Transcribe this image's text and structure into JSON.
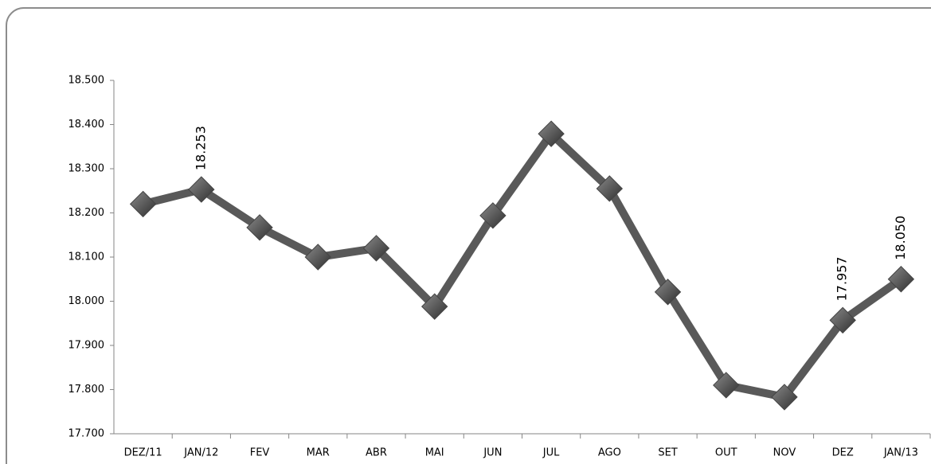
{
  "chart_data": {
    "type": "line",
    "categories": [
      "DEZ/11",
      "JAN/12",
      "FEV",
      "MAR",
      "ABR",
      "MAI",
      "JUN",
      "JUL",
      "AGO",
      "SET",
      "OUT",
      "NOV",
      "DEZ",
      "JAN/13"
    ],
    "values": [
      18220,
      18253,
      18167,
      18100,
      18120,
      17988,
      18194,
      18379,
      18255,
      18021,
      17810,
      17783,
      17957,
      18050
    ],
    "value_labels": [
      null,
      "18.253",
      null,
      null,
      null,
      null,
      null,
      null,
      null,
      null,
      null,
      null,
      "17.957",
      "18.050"
    ],
    "color": "#595959",
    "ylim": [
      17700,
      18500
    ],
    "yticks": [
      {
        "value": 17700,
        "label": "17.700"
      },
      {
        "value": 17800,
        "label": "17.800"
      },
      {
        "value": 17900,
        "label": "17.900"
      },
      {
        "value": 18000,
        "label": "18.000"
      },
      {
        "value": 18100,
        "label": "18.100"
      },
      {
        "value": 18200,
        "label": "18.200"
      },
      {
        "value": 18300,
        "label": "18.300"
      },
      {
        "value": 18400,
        "label": "18.400"
      },
      {
        "value": 18500,
        "label": "18.500"
      }
    ],
    "grid": false
  }
}
